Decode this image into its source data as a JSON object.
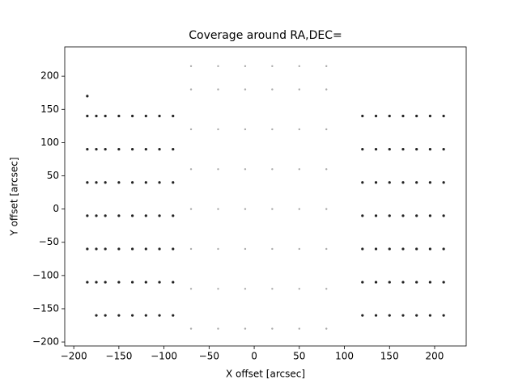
{
  "chart_data": {
    "type": "scatter",
    "title": "Coverage around RA,DEC=",
    "x_label": "X offset [arcsec]",
    "y_label": "Y offset [arcsec]",
    "xlim": [
      -210,
      235
    ],
    "ylim": [
      -206,
      244
    ],
    "xticks": [
      {
        "value": -200,
        "label": "−200"
      },
      {
        "value": -150,
        "label": "−150"
      },
      {
        "value": -100,
        "label": "−100"
      },
      {
        "value": -50,
        "label": "−50"
      },
      0,
      50,
      100,
      150,
      200
    ],
    "yticks": [
      {
        "value": -200,
        "label": "−200"
      },
      {
        "value": -150,
        "label": "−150"
      },
      {
        "value": -100,
        "label": "−100"
      },
      {
        "value": -50,
        "label": "−50"
      },
      0,
      50,
      100,
      150,
      200
    ],
    "series": [
      {
        "color": "#aaaaaa",
        "x": [
          -70,
          -70,
          -70,
          -70,
          -70,
          -70,
          -70,
          -70,
          -40,
          -40,
          -40,
          -40,
          -40,
          -40,
          -40,
          -40,
          -10,
          -10,
          -10,
          -10,
          -10,
          -10,
          -10,
          -10,
          20,
          20,
          20,
          20,
          20,
          20,
          20,
          20,
          50,
          50,
          50,
          50,
          50,
          50,
          50,
          50,
          80,
          80,
          80,
          80,
          80,
          80,
          80,
          80
        ],
        "values": [
          -180,
          -120,
          -60,
          0,
          60,
          120,
          180,
          215,
          -180,
          -120,
          -60,
          0,
          60,
          120,
          180,
          215,
          -180,
          -120,
          -60,
          0,
          60,
          120,
          180,
          215,
          -180,
          -120,
          -60,
          0,
          60,
          120,
          180,
          215,
          -180,
          -120,
          -60,
          0,
          60,
          120,
          180,
          215,
          -180,
          -120,
          -60,
          0,
          60,
          120,
          180,
          215
        ]
      },
      {
        "color": "#222222",
        "x": [
          -185,
          -185,
          -185,
          -185,
          -185,
          -185,
          -185,
          -175,
          -175,
          -175,
          -175,
          -175,
          -175,
          -175,
          -165,
          -165,
          -165,
          -165,
          -165,
          -165,
          -165,
          -150,
          -150,
          -150,
          -150,
          -150,
          -150,
          -150,
          -135,
          -135,
          -135,
          -135,
          -135,
          -135,
          -135,
          -120,
          -120,
          -120,
          -120,
          -120,
          -120,
          -120,
          -105,
          -105,
          -105,
          -105,
          -105,
          -105,
          -105,
          -90,
          -90,
          -90,
          -90,
          -90,
          -90,
          -90,
          120,
          120,
          120,
          120,
          120,
          120,
          120,
          135,
          135,
          135,
          135,
          135,
          135,
          135,
          150,
          150,
          150,
          150,
          150,
          150,
          150,
          165,
          165,
          165,
          165,
          165,
          165,
          165,
          180,
          180,
          180,
          180,
          180,
          180,
          180,
          195,
          195,
          195,
          195,
          195,
          195,
          195,
          210,
          210,
          210,
          210,
          210,
          210,
          210
        ],
        "values": [
          -110,
          -60,
          -10,
          40,
          90,
          140,
          170,
          -160,
          -110,
          -60,
          -10,
          40,
          90,
          140,
          -160,
          -110,
          -60,
          -10,
          40,
          90,
          140,
          -160,
          -110,
          -60,
          -10,
          40,
          90,
          140,
          -160,
          -110,
          -60,
          -10,
          40,
          90,
          140,
          -160,
          -110,
          -60,
          -10,
          40,
          90,
          140,
          -160,
          -110,
          -60,
          -10,
          40,
          90,
          140,
          -160,
          -110,
          -60,
          -10,
          40,
          90,
          140,
          -160,
          -110,
          -60,
          -10,
          40,
          90,
          140,
          -160,
          -110,
          -60,
          -10,
          40,
          90,
          140,
          -160,
          -110,
          -60,
          -10,
          40,
          90,
          140,
          -160,
          -110,
          -60,
          -10,
          40,
          90,
          140,
          -160,
          -110,
          -60,
          -10,
          40,
          90,
          140,
          -160,
          -110,
          -60,
          -10,
          40,
          90,
          140,
          -160,
          -110,
          -60,
          -10,
          40,
          90,
          140
        ]
      }
    ]
  }
}
